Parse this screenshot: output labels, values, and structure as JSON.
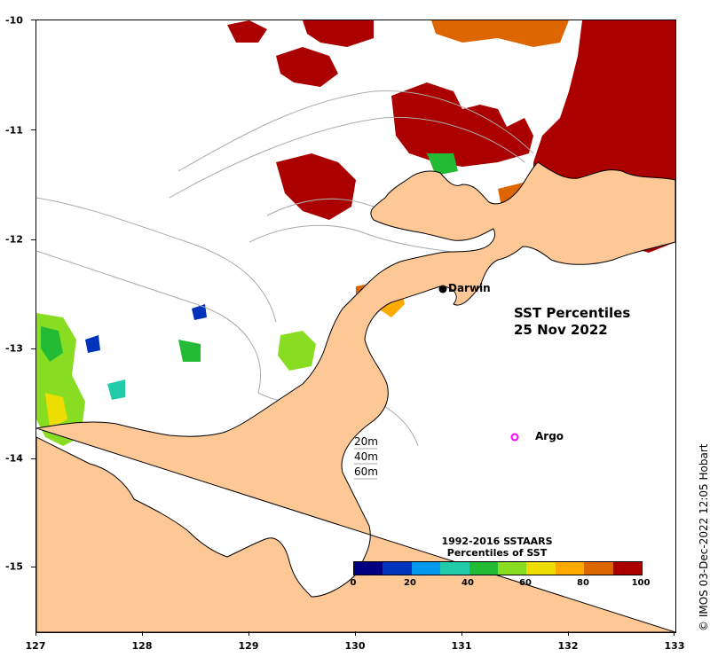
{
  "map": {
    "title_line1": "SST Percentiles",
    "title_line2": "25 Nov 2022",
    "copyright": "© IMOS 03-Dec-2022 12:05 Hobart",
    "x_ticks": [
      "127",
      "128",
      "129",
      "130",
      "131",
      "132",
      "133"
    ],
    "y_ticks": [
      "-10",
      "-11",
      "-12",
      "-13",
      "-14",
      "-15"
    ],
    "lon_range": [
      127,
      133
    ],
    "lat_range": [
      -15.6,
      -10
    ]
  },
  "places": {
    "darwin": "Darwin",
    "argo": "Argo"
  },
  "depth_legend": [
    "20m",
    "40m",
    "60m"
  ],
  "colorbar": {
    "title_line1": "1992-2016 SSTAARS",
    "title_line2": "Percentiles of SST",
    "ticks": [
      "0",
      "20",
      "40",
      "60",
      "80",
      "100"
    ],
    "colors": [
      "#000080",
      "#0033bb",
      "#0099ee",
      "#22ccaa",
      "#22bb33",
      "#88dd22",
      "#eedd00",
      "#ffaa00",
      "#dd6600",
      "#aa0000"
    ]
  },
  "colors": {
    "land": "#fdc896",
    "ocean": "#ffffff",
    "coast": "#000000",
    "bathy": "#aaaaaa",
    "argo": "#ff00ff"
  }
}
